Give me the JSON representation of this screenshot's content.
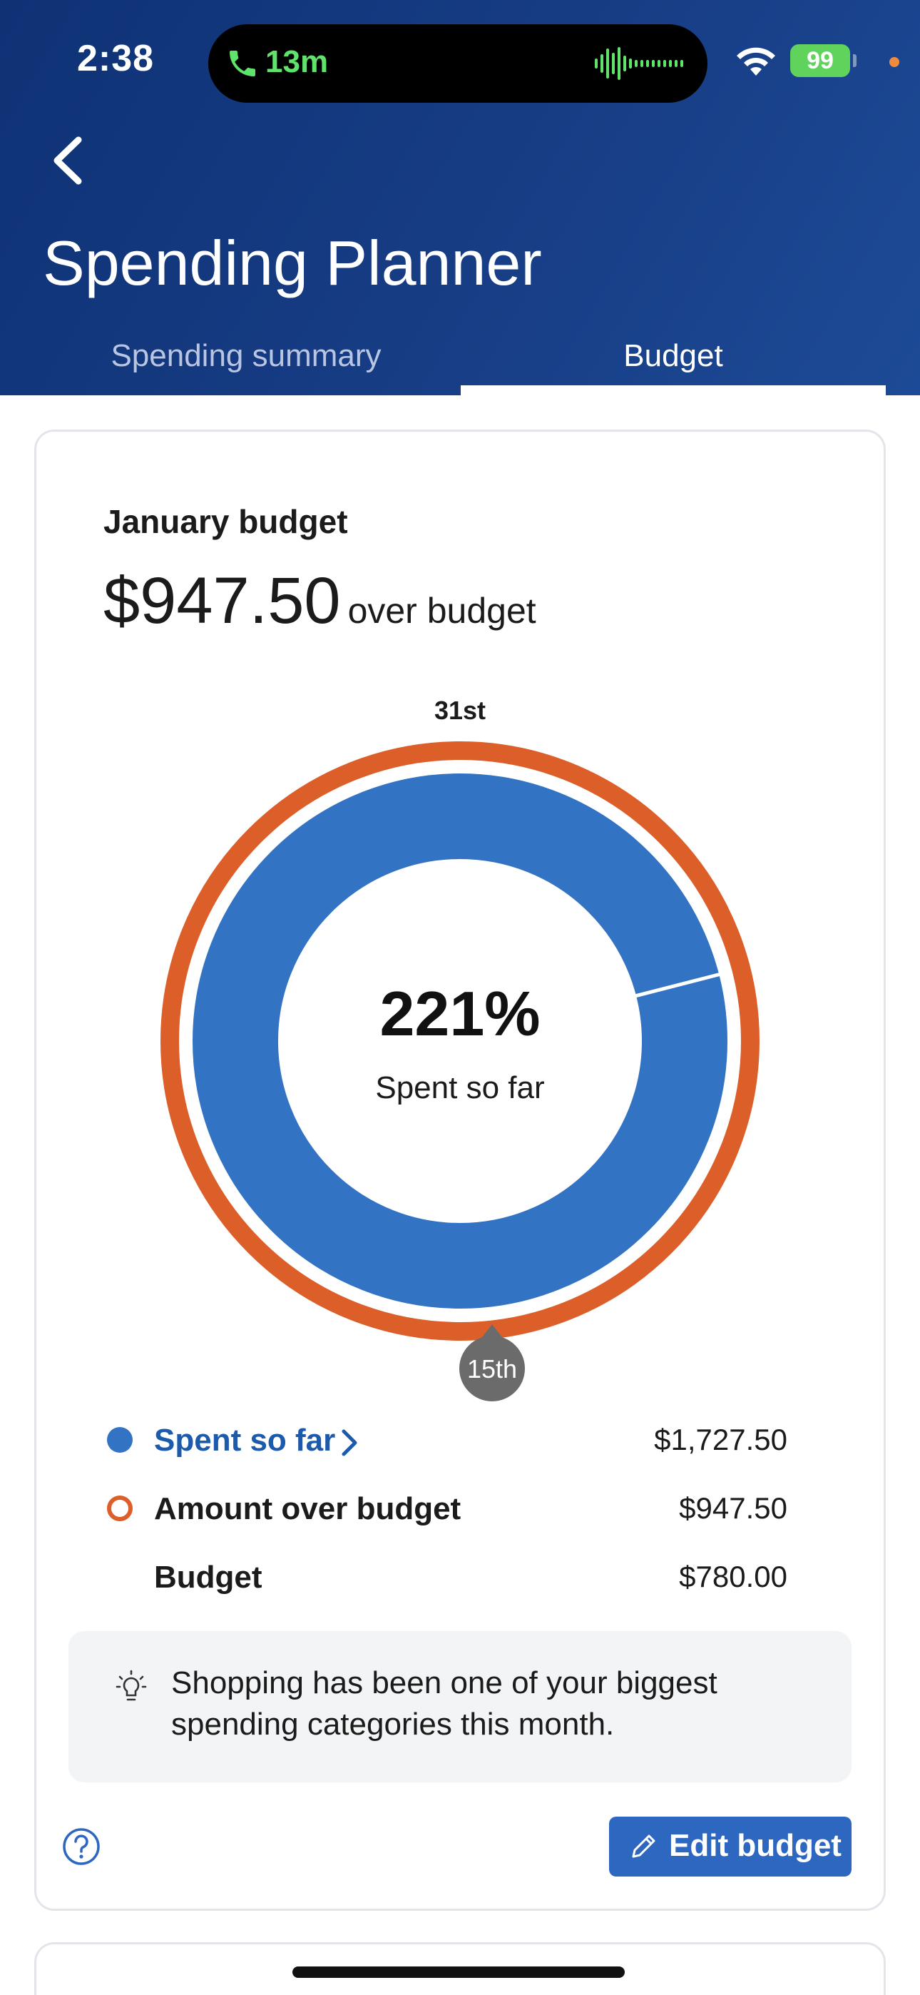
{
  "status_bar": {
    "time": "2:38",
    "call_duration": "13m",
    "battery": "99"
  },
  "header": {
    "title": "Spending Planner",
    "tabs": [
      {
        "label": "Spending summary",
        "selected": false
      },
      {
        "label": "Budget",
        "selected": true
      }
    ]
  },
  "budget_card": {
    "month_label": "January budget",
    "amount": "$947.50",
    "amount_suffix": "over budget",
    "ring_top_label": "31st",
    "ring_marker_label": "15th",
    "percent": "221%",
    "percent_caption": "Spent so far",
    "legend": [
      {
        "label": "Spent so far",
        "value": "$1,727.50",
        "link": true
      },
      {
        "label": "Amount over budget",
        "value": "$947.50",
        "link": false
      },
      {
        "label": "Budget",
        "value": "$780.00",
        "link": false
      }
    ],
    "insight": "Shopping has been one of your biggest spending categories this month.",
    "edit_button": "Edit budget"
  },
  "colors": {
    "header_bg": "#143a80",
    "spent_blue": "#3373c4",
    "over_orange": "#dc5f2a",
    "link_blue": "#1c5aac",
    "button_blue": "#2e67c0"
  },
  "chart_data": {
    "type": "pie",
    "values": {
      "spent_so_far": 1727.5,
      "amount_over_budget": 947.5,
      "budget": 780.0,
      "percent_spent": 221
    },
    "ring_labels": {
      "end_of_month": "31st",
      "today_marker": "15th"
    }
  }
}
